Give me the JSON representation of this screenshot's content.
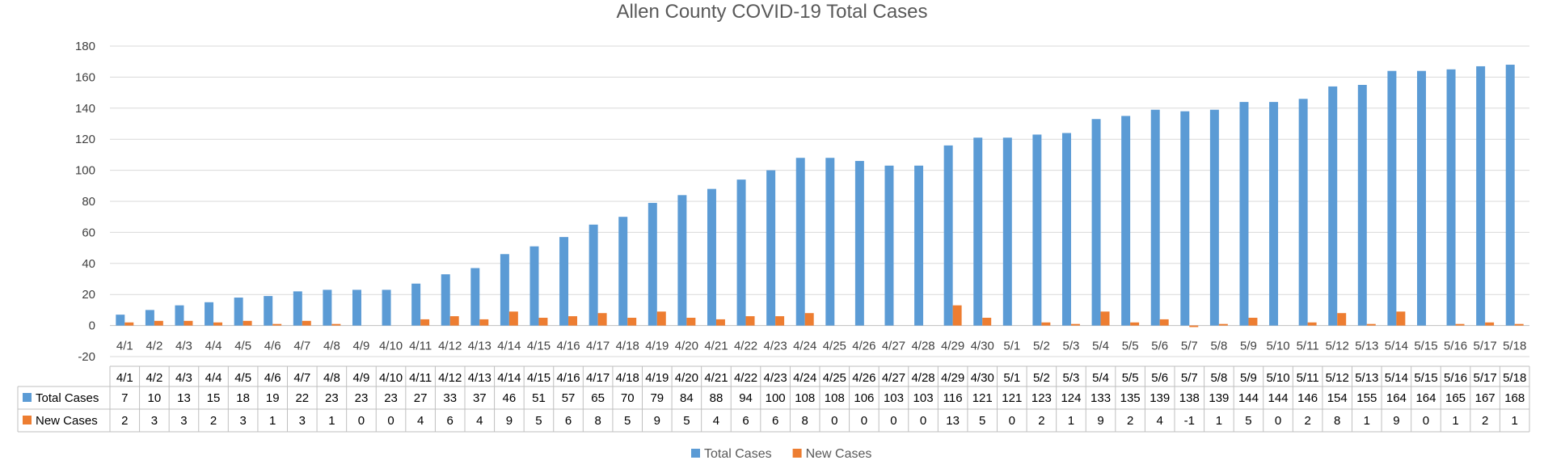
{
  "chart_data": {
    "type": "bar",
    "title": "Allen County COVID-19 Total Cases",
    "ylim": [
      -20,
      180
    ],
    "y_ticks": [
      -20,
      0,
      20,
      40,
      60,
      80,
      100,
      120,
      140,
      160,
      180
    ],
    "grid": true,
    "legend_position": "bottom",
    "data_table": true,
    "categories": [
      "4/1",
      "4/2",
      "4/3",
      "4/4",
      "4/5",
      "4/6",
      "4/7",
      "4/8",
      "4/9",
      "4/10",
      "4/11",
      "4/12",
      "4/13",
      "4/14",
      "4/15",
      "4/16",
      "4/17",
      "4/18",
      "4/19",
      "4/20",
      "4/21",
      "4/22",
      "4/23",
      "4/24",
      "4/25",
      "4/26",
      "4/27",
      "4/28",
      "4/29",
      "4/30",
      "5/1",
      "5/2",
      "5/3",
      "5/4",
      "5/5",
      "5/6",
      "5/7",
      "5/8",
      "5/9",
      "5/10",
      "5/11",
      "5/12",
      "5/13",
      "5/14",
      "5/15",
      "5/16",
      "5/17",
      "5/18"
    ],
    "series": [
      {
        "name": "Total Cases",
        "color": "#5B9BD5",
        "values": [
          7,
          10,
          13,
          15,
          18,
          19,
          22,
          23,
          23,
          23,
          27,
          33,
          37,
          46,
          51,
          57,
          65,
          70,
          79,
          84,
          88,
          94,
          100,
          108,
          108,
          106,
          103,
          103,
          116,
          121,
          121,
          123,
          124,
          133,
          135,
          139,
          138,
          139,
          144,
          144,
          146,
          154,
          155,
          164,
          164,
          165,
          167,
          168
        ]
      },
      {
        "name": "New Cases",
        "color": "#ED7D31",
        "values": [
          2,
          3,
          3,
          2,
          3,
          1,
          3,
          1,
          0,
          0,
          4,
          6,
          4,
          9,
          5,
          6,
          8,
          5,
          9,
          5,
          4,
          6,
          6,
          8,
          0,
          0,
          0,
          0,
          13,
          5,
          0,
          2,
          1,
          9,
          2,
          4,
          -1,
          1,
          5,
          0,
          2,
          8,
          1,
          9,
          0,
          1,
          2,
          1
        ]
      }
    ]
  }
}
